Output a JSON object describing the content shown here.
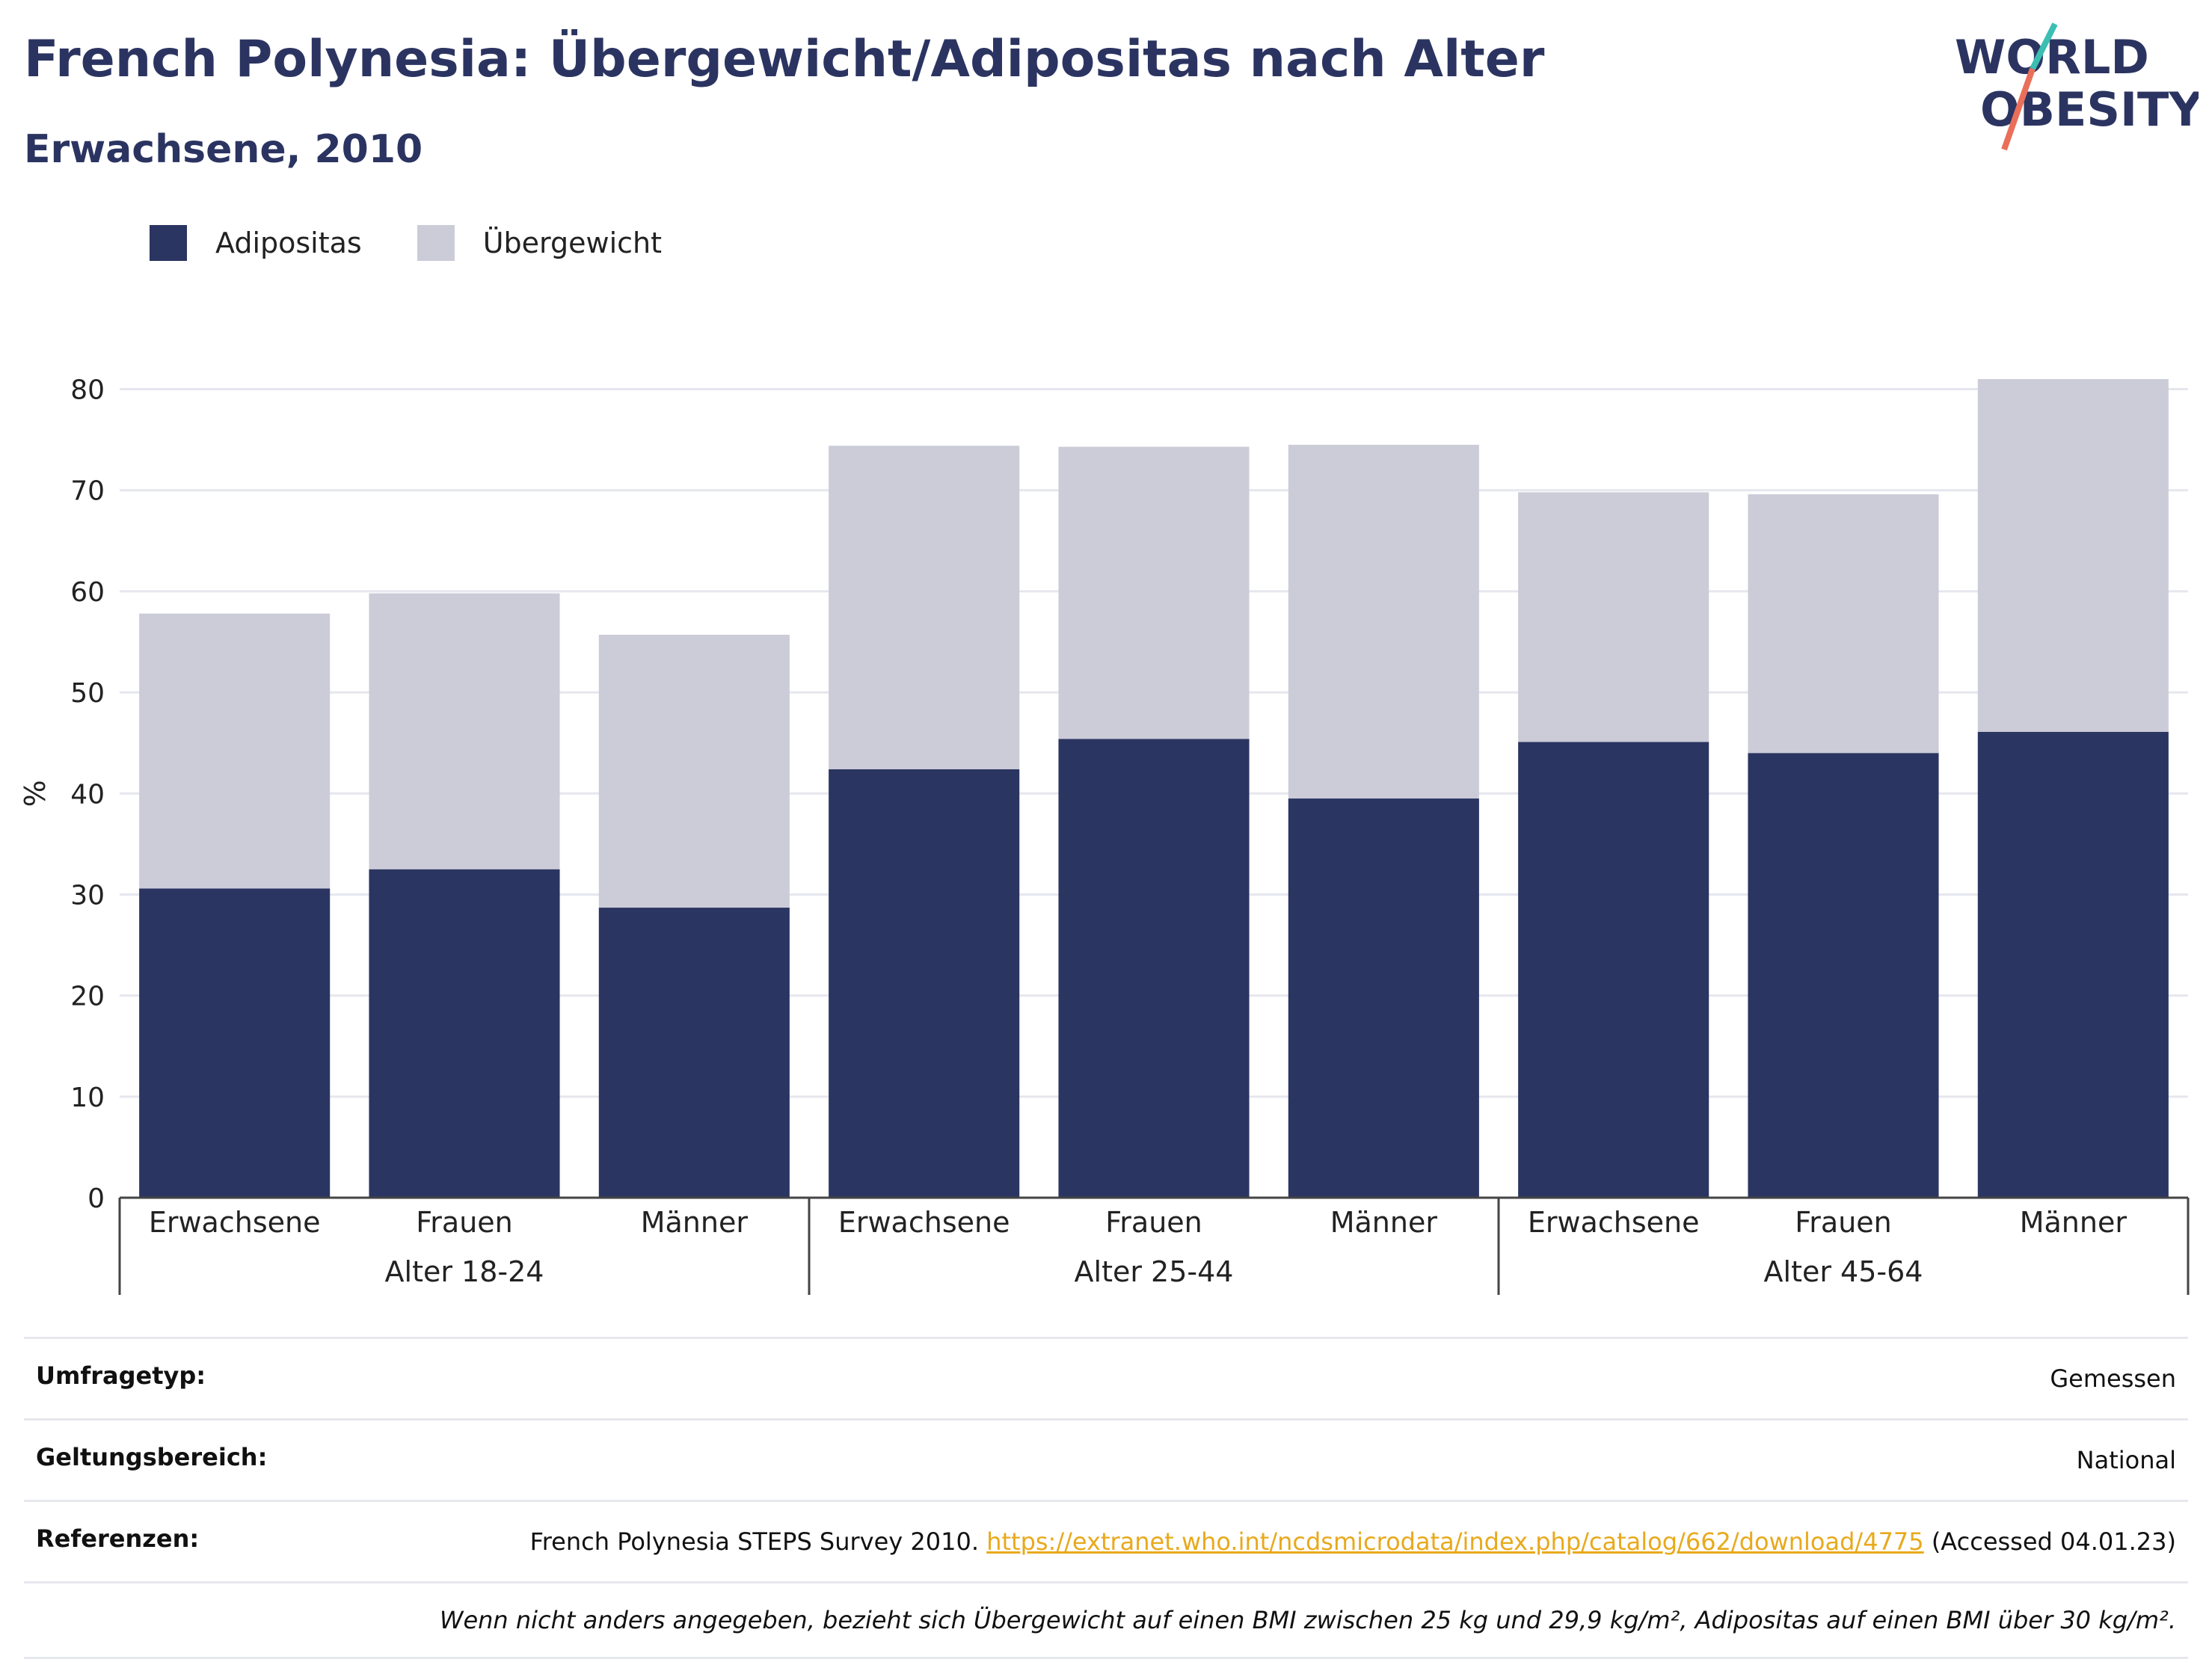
{
  "header": {
    "title": "French Polynesia: Übergewicht/Adipositas nach Alter",
    "subtitle": "Erwachsene, 2010"
  },
  "logo": {
    "line1": "WORLD",
    "line2": "OBESITY"
  },
  "colors": {
    "adipositas": "#2b3562",
    "uebergewicht": "#cbccd8",
    "title": "#2b3461",
    "link": "#e8a91c",
    "grid": "#e6e7ee"
  },
  "chart_data": {
    "type": "bar",
    "stacked": true,
    "ylabel": "%",
    "ylim": [
      0,
      83
    ],
    "yticks": [
      0,
      10,
      20,
      30,
      40,
      50,
      60,
      70,
      80
    ],
    "grid": true,
    "legend_position": "top-left",
    "groups": [
      {
        "label": "Alter 18-24",
        "categories": [
          "Erwachsene",
          "Frauen",
          "Männer"
        ]
      },
      {
        "label": "Alter 25-44",
        "categories": [
          "Erwachsene",
          "Frauen",
          "Männer"
        ]
      },
      {
        "label": "Alter 45-64",
        "categories": [
          "Erwachsene",
          "Frauen",
          "Männer"
        ]
      }
    ],
    "series": [
      {
        "name": "Adipositas",
        "values": [
          30.6,
          32.5,
          28.7,
          42.4,
          45.4,
          39.5,
          45.1,
          44.0,
          46.1
        ]
      },
      {
        "name": "Übergewicht",
        "values": [
          27.2,
          27.3,
          27.0,
          32.0,
          28.9,
          35.0,
          24.7,
          25.6,
          34.9
        ]
      }
    ]
  },
  "info": {
    "survey_type_label": "Umfragetyp:",
    "survey_type_value": "Gemessen",
    "scope_label": "Geltungsbereich:",
    "scope_value": "National",
    "references_label": "Referenzen:",
    "references_text": "French Polynesia STEPS Survey 2010.",
    "references_link": "https://extranet.who.int/ncdsmicrodata/index.php/catalog/662/download/4775",
    "references_suffix": "(Accessed 04.01.23)",
    "note": "Wenn nicht anders angegeben, bezieht sich Übergewicht auf einen BMI zwischen 25 kg und 29,9 kg/m², Adipositas auf einen BMI über 30 kg/m²."
  }
}
